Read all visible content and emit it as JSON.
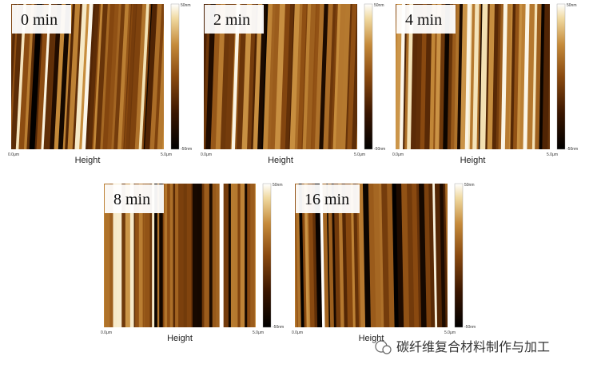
{
  "panels": [
    {
      "label": "0 min",
      "x_start": "0.0μm",
      "x_end": "5.0μm",
      "x_label": "Height",
      "scale_max": "50nm",
      "scale_min": "-50nm"
    },
    {
      "label": "2 min",
      "x_start": "0.0μm",
      "x_end": "5.0μm",
      "x_label": "Height",
      "scale_max": "50nm",
      "scale_min": "-50nm"
    },
    {
      "label": "4 min",
      "x_start": "0.0μm",
      "x_end": "5.0μm",
      "x_label": "Height",
      "scale_max": "50nm",
      "scale_min": "-50nm"
    },
    {
      "label": "8 min",
      "x_start": "0.0μm",
      "x_end": "5.0μm",
      "x_label": "Height",
      "scale_max": "50nm",
      "scale_min": "-50nm"
    },
    {
      "label": "16 min",
      "x_start": "0.0μm",
      "x_end": "5.0μm",
      "x_label": "Height",
      "scale_max": "50nm",
      "scale_min": "-50nm"
    }
  ],
  "watermark": "碳纤维复合材料制作与加工"
}
